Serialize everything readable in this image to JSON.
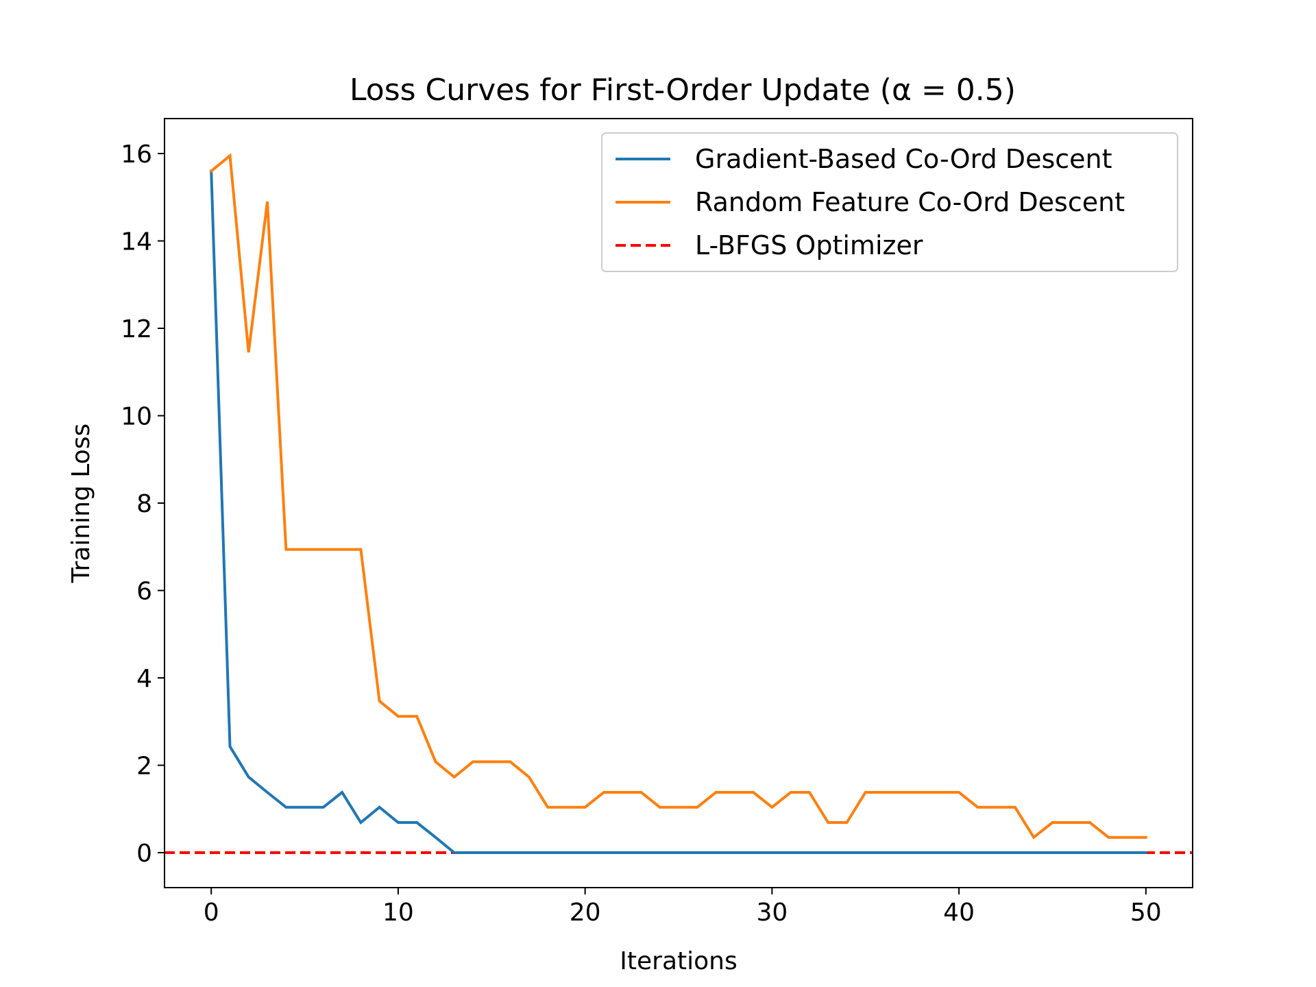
{
  "chart_data": {
    "type": "line",
    "title": "Loss Curves for First-Order Update (α = 0.5)",
    "xlabel": "Iterations",
    "ylabel": "Training Loss",
    "xlim": [
      -2.5,
      52.5
    ],
    "ylim": [
      -0.8,
      16.8
    ],
    "xticks": [
      0,
      10,
      20,
      30,
      40,
      50
    ],
    "yticks": [
      0,
      2,
      4,
      6,
      8,
      10,
      12,
      14,
      16
    ],
    "grid": false,
    "legend_position": "top-right",
    "series": [
      {
        "name": "Gradient-Based Co-Ord Descent",
        "color": "#1f77b4",
        "style": "solid",
        "x": [
          0,
          1,
          2,
          3,
          4,
          5,
          6,
          7,
          8,
          9,
          10,
          11,
          12,
          13,
          14,
          15,
          16,
          17,
          18,
          19,
          20,
          21,
          22,
          23,
          24,
          25,
          26,
          27,
          28,
          29,
          30,
          31,
          32,
          33,
          34,
          35,
          36,
          37,
          38,
          39,
          40,
          41,
          42,
          43,
          44,
          45,
          46,
          47,
          48,
          49,
          50
        ],
        "values": [
          15.6,
          2.43,
          1.73,
          1.38,
          1.04,
          1.04,
          1.04,
          1.38,
          0.69,
          1.04,
          0.69,
          0.69,
          0.35,
          0,
          0,
          0,
          0,
          0,
          0,
          0,
          0,
          0,
          0,
          0,
          0,
          0,
          0,
          0,
          0,
          0,
          0,
          0,
          0,
          0,
          0,
          0,
          0,
          0,
          0,
          0,
          0,
          0,
          0,
          0,
          0,
          0,
          0,
          0,
          0,
          0,
          0
        ]
      },
      {
        "name": "Random Feature Co-Ord Descent",
        "color": "#ff7f0e",
        "style": "solid",
        "x": [
          0,
          1,
          2,
          3,
          4,
          5,
          6,
          7,
          8,
          9,
          10,
          11,
          12,
          13,
          14,
          15,
          16,
          17,
          18,
          19,
          20,
          21,
          22,
          23,
          24,
          25,
          26,
          27,
          28,
          29,
          30,
          31,
          32,
          33,
          34,
          35,
          36,
          37,
          38,
          39,
          40,
          41,
          42,
          43,
          44,
          45,
          46,
          47,
          48,
          49,
          50
        ],
        "values": [
          15.6,
          15.95,
          11.45,
          14.9,
          6.94,
          6.94,
          6.94,
          6.94,
          6.94,
          3.47,
          3.12,
          3.12,
          2.08,
          1.73,
          2.08,
          2.08,
          2.08,
          1.73,
          1.04,
          1.04,
          1.04,
          1.38,
          1.38,
          1.38,
          1.04,
          1.04,
          1.04,
          1.38,
          1.38,
          1.38,
          1.04,
          1.38,
          1.38,
          0.69,
          0.69,
          1.38,
          1.38,
          1.38,
          1.38,
          1.38,
          1.38,
          1.04,
          1.04,
          1.04,
          0.35,
          0.69,
          0.69,
          0.69,
          0.35,
          0.35,
          0.35
        ]
      },
      {
        "name": "L-BFGS Optimizer",
        "color": "#ff0000",
        "style": "dashed",
        "hline": 0
      }
    ]
  }
}
